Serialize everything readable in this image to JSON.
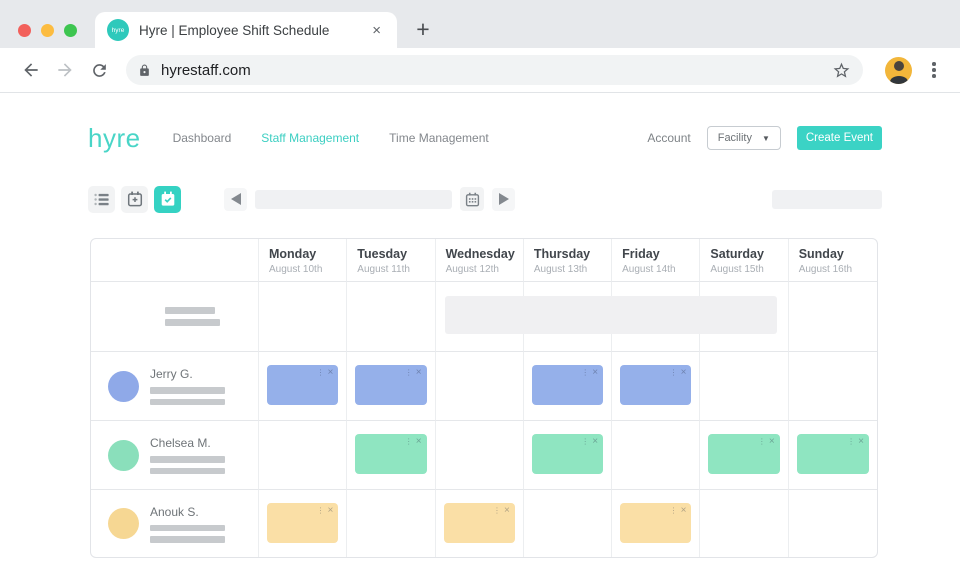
{
  "colors": {
    "accent_teal": "#3bd3c5",
    "chrome_strip": "#e7e9ec",
    "address_bar": "#f1f3f4",
    "table_border": "#e2e4e8",
    "skeleton_gray": "#c7cacd",
    "unassigned_gray": "#f0f0f2"
  },
  "browser": {
    "traffic_lights": [
      "close-window",
      "minimize-window",
      "zoom-window"
    ],
    "tab": {
      "favicon_text": "hyre",
      "title": "Hyre | Employee Shift Schedule",
      "close": "×"
    },
    "new_tab": "+",
    "url": "hyrestaff.com",
    "icons": [
      "back-arrow",
      "forward-arrow",
      "reload",
      "lock",
      "star-bookmark",
      "profile-avatar",
      "kebab-menu"
    ]
  },
  "header": {
    "logo": "hyre",
    "nav": [
      {
        "label": "Dashboard",
        "active": false
      },
      {
        "label": "Staff Management",
        "active": true
      },
      {
        "label": "Time Management",
        "active": false
      }
    ],
    "account_label": "Account",
    "facility_label": "Facility",
    "facility_caret": "▼",
    "create_event_label": "Create Event"
  },
  "toolbar": {
    "view_buttons": [
      {
        "icon": "list-view-icon",
        "active": false
      },
      {
        "icon": "calendar-add-icon",
        "active": false
      },
      {
        "icon": "calendar-check-icon",
        "active": true
      }
    ],
    "date_range_display": "",
    "right_display": ""
  },
  "schedule": {
    "days": [
      {
        "name": "Monday",
        "date": "August 10th"
      },
      {
        "name": "Tuesday",
        "date": "August 11th"
      },
      {
        "name": "Wednesday",
        "date": "August 12th"
      },
      {
        "name": "Thursday",
        "date": "August 13th"
      },
      {
        "name": "Friday",
        "date": "August 14th"
      },
      {
        "name": "Saturday",
        "date": "August 15th"
      },
      {
        "name": "Sunday",
        "date": "August 16th"
      }
    ],
    "rows": [
      {
        "type": "placeholder",
        "name": "",
        "shifts": []
      },
      {
        "type": "employee",
        "name": "Jerry G.",
        "avatar_color": "#8fa9e8",
        "shift_color": "#95b0ea",
        "shifts": [
          "Monday",
          "Tuesday",
          "Thursday",
          "Friday"
        ]
      },
      {
        "type": "employee",
        "name": "Chelsea M.",
        "avatar_color": "#8adfbb",
        "shift_color": "#8fe5c1",
        "shifts": [
          "Tuesday",
          "Thursday",
          "Saturday",
          "Sunday"
        ]
      },
      {
        "type": "employee",
        "name": "Anouk S.",
        "avatar_color": "#f6d793",
        "shift_color": "#fadfa6",
        "shifts": [
          "Monday",
          "Wednesday",
          "Friday"
        ]
      }
    ],
    "unassigned_event": {
      "start_day": "Wednesday",
      "end_day": "Saturday",
      "color": "#f0f0f2"
    },
    "shift_controls": {
      "menu_icon": "⋮",
      "remove_icon": "×"
    }
  }
}
